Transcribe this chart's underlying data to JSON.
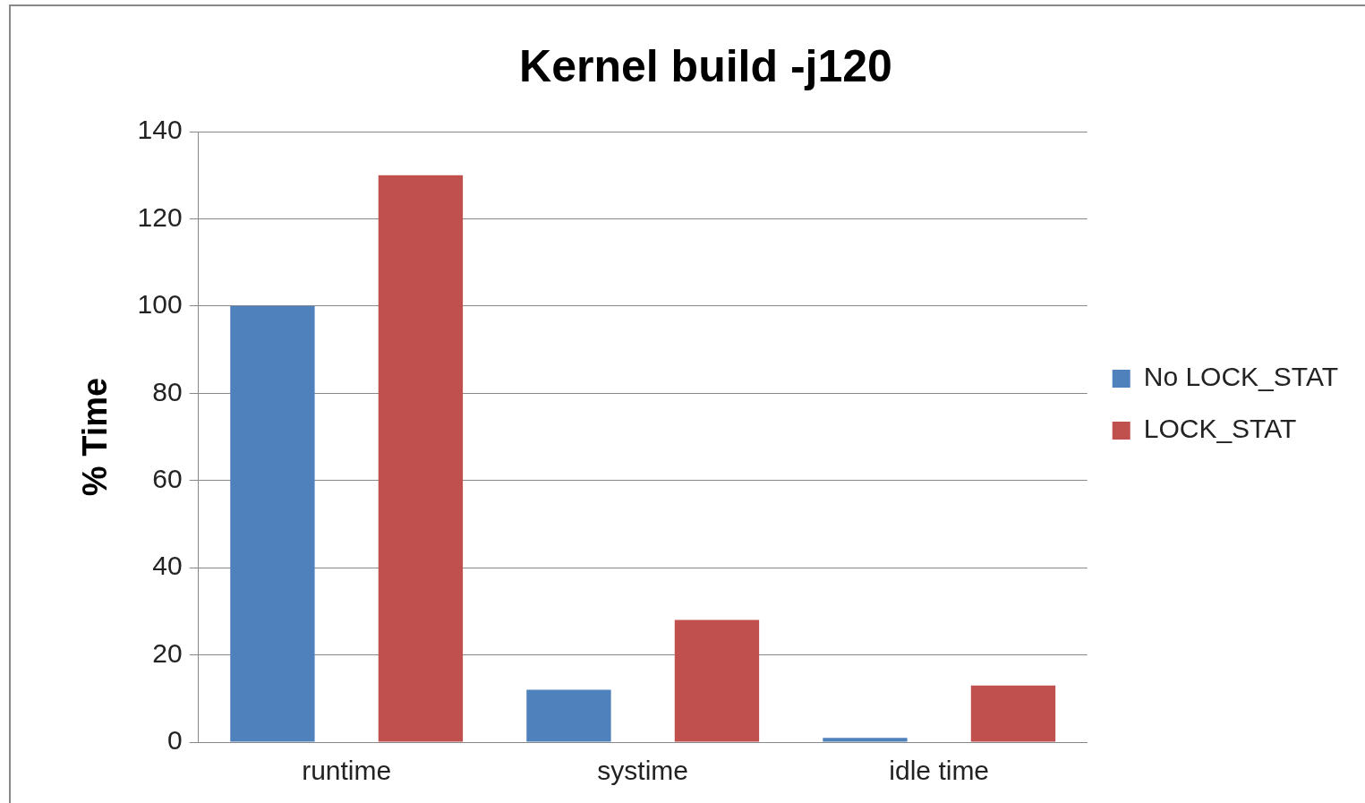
{
  "chart_data": {
    "type": "bar",
    "title": "Kernel build -j120",
    "ylabel": "% Time",
    "categories": [
      "runtime",
      "systime",
      "idle time"
    ],
    "series": [
      {
        "name": "No LOCK_STAT",
        "color": "#4f81bd",
        "values": [
          100,
          12,
          1
        ]
      },
      {
        "name": "LOCK_STAT",
        "color": "#c0504d",
        "values": [
          130,
          28,
          13
        ]
      }
    ],
    "ylim": [
      0,
      140
    ],
    "yticks": [
      0,
      20,
      40,
      60,
      80,
      100,
      120,
      140
    ],
    "grid": "y",
    "legend": "right"
  }
}
